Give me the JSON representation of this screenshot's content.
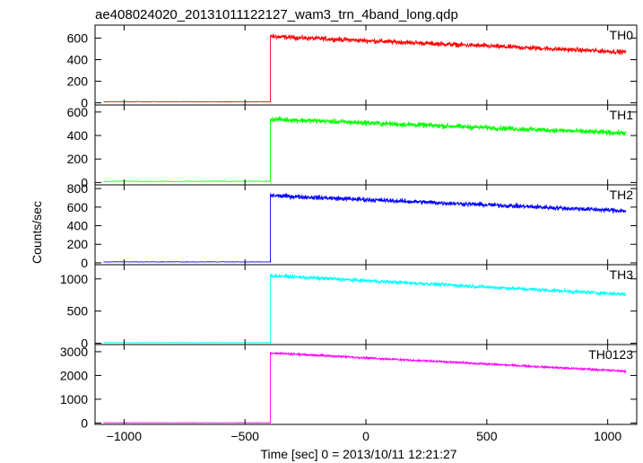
{
  "chart_data": {
    "type": "line",
    "title": "ae408024020_20131011122127_wam3_trn_4band_long.qdp",
    "xlabel": "Time [sec] 0 = 2013/10/11 12:21:27",
    "ylabel": "Counts/sec",
    "xlim": [
      -1120,
      1120
    ],
    "x_ticks": [
      -1000,
      -500,
      0,
      500,
      1000
    ],
    "x_tick_labels": [
      "−1000",
      "−500",
      "0",
      "500",
      "1000"
    ],
    "x_data_range": [
      -1085,
      1075
    ],
    "onset_x": -395,
    "grid": false,
    "panels": [
      {
        "name": "TH0",
        "color": "#ff0000",
        "ylim": [
          -20,
          720
        ],
        "y_ticks": [
          0,
          200,
          400,
          600
        ],
        "y_tick_labels": [
          "0",
          "200",
          "400",
          "600"
        ],
        "pre_level": 10,
        "start_level": 615,
        "end_level": 470,
        "noise": 22
      },
      {
        "name": "TH1",
        "color": "#00ff00",
        "ylim": [
          -20,
          660
        ],
        "y_ticks": [
          0,
          200,
          400,
          600
        ],
        "y_tick_labels": [
          "0",
          "200",
          "400",
          "600"
        ],
        "pre_level": 10,
        "start_level": 540,
        "end_level": 420,
        "noise": 22
      },
      {
        "name": "TH2",
        "color": "#0000ff",
        "ylim": [
          -20,
          840
        ],
        "y_ticks": [
          0,
          200,
          400,
          600,
          800
        ],
        "y_tick_labels": [
          "0",
          "200",
          "400",
          "600",
          "800"
        ],
        "pre_level": 10,
        "start_level": 725,
        "end_level": 560,
        "noise": 25
      },
      {
        "name": "TH3",
        "color": "#00ffff",
        "ylim": [
          -20,
          1220
        ],
        "y_ticks": [
          0,
          500,
          1000
        ],
        "y_tick_labels": [
          "0",
          "500",
          "1000"
        ],
        "pre_level": 10,
        "start_level": 1050,
        "end_level": 760,
        "noise": 30
      },
      {
        "name": "TH0123",
        "color": "#ff00ff",
        "ylim": [
          -60,
          3300
        ],
        "y_ticks": [
          0,
          1000,
          2000,
          3000
        ],
        "y_tick_labels": [
          "0",
          "1000",
          "2000",
          "3000"
        ],
        "pre_level": 10,
        "start_level": 2950,
        "end_level": 2180,
        "noise": 45
      }
    ]
  }
}
